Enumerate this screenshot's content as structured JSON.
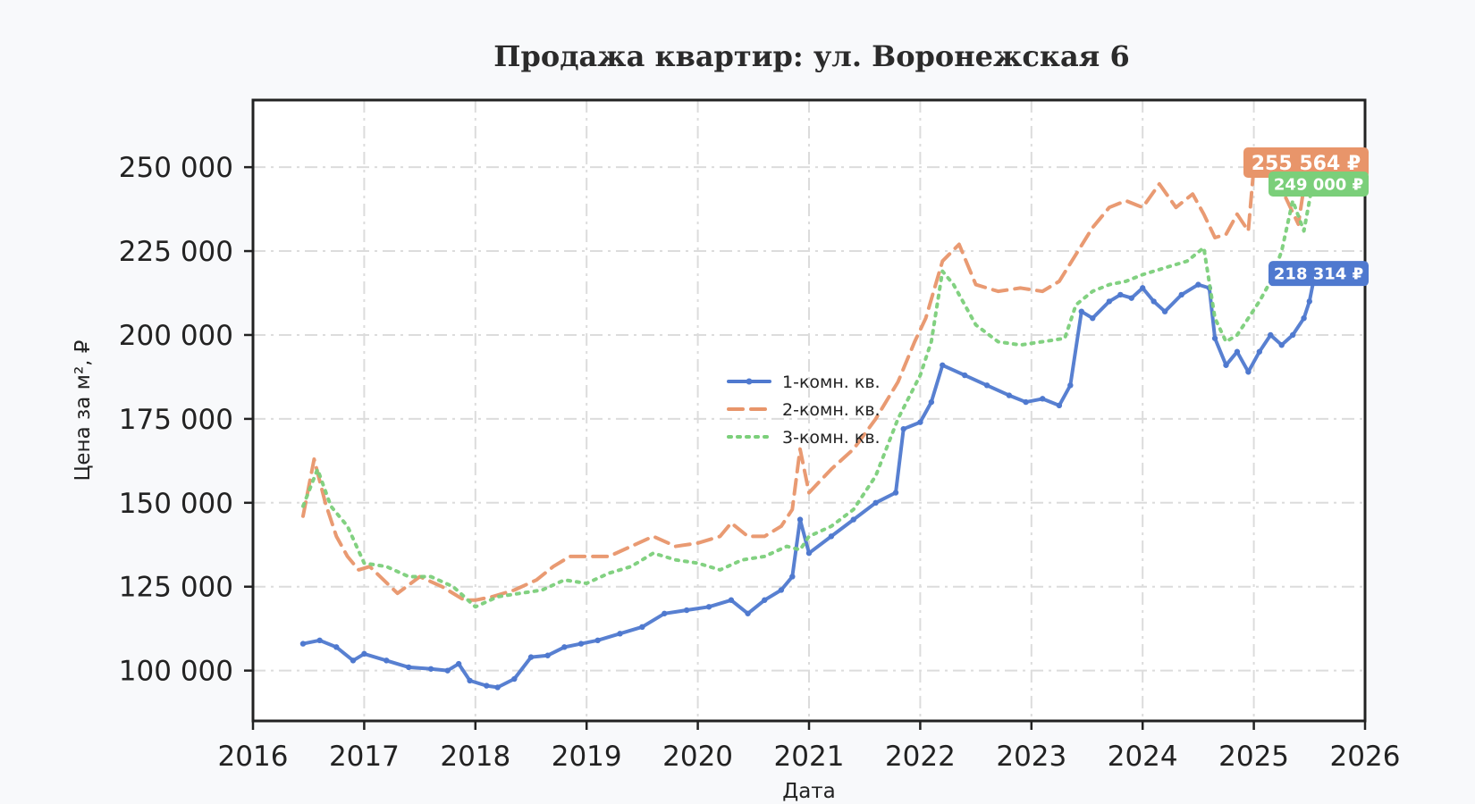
{
  "chart_data": {
    "type": "line",
    "title": "Продажа квартир: ул. Воронежская 6",
    "xlabel": "Дата",
    "ylabel": "Цена за м², ₽",
    "xlim": [
      2016,
      2026
    ],
    "ylim": [
      85000,
      270000
    ],
    "x_ticks": [
      "2016",
      "2017",
      "2018",
      "2019",
      "2020",
      "2021",
      "2022",
      "2023",
      "2024",
      "2025",
      "2026"
    ],
    "y_ticks": [
      100000,
      125000,
      150000,
      175000,
      200000,
      225000,
      250000
    ],
    "y_tick_labels": [
      "100 000",
      "125 000",
      "150 000",
      "175 000",
      "200 000",
      "225 000",
      "250 000"
    ],
    "grid": true,
    "legend_position": "center",
    "series": [
      {
        "name": "1-комн. кв.",
        "color": "#4f79cf",
        "style": "solid-markers",
        "last_label": "218 314 ₽",
        "x": [
          2016.45,
          2016.6,
          2016.75,
          2016.9,
          2017.0,
          2017.2,
          2017.4,
          2017.6,
          2017.75,
          2017.85,
          2017.95,
          2018.1,
          2018.2,
          2018.35,
          2018.5,
          2018.65,
          2018.8,
          2018.95,
          2019.1,
          2019.3,
          2019.5,
          2019.7,
          2019.9,
          2020.1,
          2020.3,
          2020.45,
          2020.6,
          2020.75,
          2020.85,
          2020.92,
          2021.0,
          2021.2,
          2021.4,
          2021.6,
          2021.78,
          2021.85,
          2022.0,
          2022.1,
          2022.2,
          2022.4,
          2022.6,
          2022.8,
          2022.95,
          2023.1,
          2023.25,
          2023.35,
          2023.45,
          2023.55,
          2023.7,
          2023.8,
          2023.9,
          2024.0,
          2024.1,
          2024.2,
          2024.35,
          2024.5,
          2024.6,
          2024.65,
          2024.75,
          2024.85,
          2024.95,
          2025.05,
          2025.15,
          2025.25,
          2025.35,
          2025.45,
          2025.5,
          2025.55
        ],
        "y": [
          108000,
          109000,
          107000,
          103000,
          105000,
          103000,
          101000,
          100500,
          100000,
          102000,
          97000,
          95500,
          95000,
          97500,
          104000,
          104500,
          107000,
          108000,
          109000,
          111000,
          113000,
          117000,
          118000,
          119000,
          121000,
          117000,
          121000,
          124000,
          128000,
          145000,
          135000,
          140000,
          145000,
          150000,
          153000,
          172000,
          174000,
          180000,
          191000,
          188000,
          185000,
          182000,
          180000,
          181000,
          179000,
          185000,
          207000,
          205000,
          210000,
          212000,
          211000,
          214000,
          210000,
          207000,
          212000,
          215000,
          214000,
          199000,
          191000,
          195000,
          189000,
          195000,
          200000,
          197000,
          200000,
          205000,
          210000,
          218314
        ]
      },
      {
        "name": "2-комн. кв.",
        "color": "#e8956a",
        "style": "dashed",
        "last_label": "255 564 ₽",
        "x": [
          2016.45,
          2016.55,
          2016.65,
          2016.75,
          2016.85,
          2016.95,
          2017.05,
          2017.3,
          2017.5,
          2017.7,
          2017.9,
          2018.0,
          2018.15,
          2018.35,
          2018.55,
          2018.7,
          2018.85,
          2019.0,
          2019.2,
          2019.4,
          2019.6,
          2019.8,
          2020.0,
          2020.2,
          2020.3,
          2020.45,
          2020.6,
          2020.75,
          2020.85,
          2020.92,
          2021.0,
          2021.2,
          2021.4,
          2021.6,
          2021.8,
          2021.95,
          2022.05,
          2022.2,
          2022.35,
          2022.5,
          2022.7,
          2022.9,
          2023.1,
          2023.25,
          2023.4,
          2023.55,
          2023.7,
          2023.85,
          2024.0,
          2024.15,
          2024.3,
          2024.45,
          2024.55,
          2024.65,
          2024.75,
          2024.85,
          2024.95,
          2025.0,
          2025.1,
          2025.2,
          2025.3,
          2025.4,
          2025.5,
          2025.55
        ],
        "y": [
          146000,
          163000,
          150000,
          140000,
          134000,
          130000,
          131000,
          123000,
          128000,
          125000,
          121000,
          121000,
          122000,
          124000,
          127000,
          131000,
          134000,
          134000,
          134000,
          137000,
          140000,
          137000,
          138000,
          140000,
          144000,
          140000,
          140000,
          143000,
          148000,
          166000,
          153000,
          160000,
          166000,
          175000,
          186000,
          198000,
          205000,
          222000,
          227000,
          215000,
          213000,
          214000,
          213000,
          216000,
          224000,
          232000,
          238000,
          240000,
          238000,
          245000,
          238000,
          242000,
          236000,
          229000,
          230000,
          236000,
          231000,
          250000,
          255000,
          247000,
          240000,
          233000,
          255000,
          255564
        ]
      },
      {
        "name": "3-комн. кв.",
        "color": "#7bcf7a",
        "style": "dotted",
        "last_label": "249 000 ₽",
        "x": [
          2016.45,
          2016.58,
          2016.7,
          2016.85,
          2017.0,
          2017.2,
          2017.4,
          2017.6,
          2017.8,
          2018.0,
          2018.2,
          2018.4,
          2018.6,
          2018.8,
          2019.0,
          2019.2,
          2019.4,
          2019.6,
          2019.8,
          2020.0,
          2020.2,
          2020.4,
          2020.6,
          2020.8,
          2020.92,
          2021.0,
          2021.2,
          2021.4,
          2021.6,
          2021.8,
          2022.0,
          2022.1,
          2022.2,
          2022.3,
          2022.5,
          2022.7,
          2022.9,
          2023.1,
          2023.3,
          2023.4,
          2023.55,
          2023.7,
          2023.85,
          2024.0,
          2024.2,
          2024.4,
          2024.55,
          2024.65,
          2024.75,
          2024.85,
          2024.95,
          2025.05,
          2025.15,
          2025.25,
          2025.35,
          2025.45,
          2025.55
        ],
        "y": [
          149000,
          160000,
          149000,
          143000,
          132000,
          131000,
          128000,
          128000,
          125000,
          119000,
          122000,
          123000,
          124000,
          127000,
          126000,
          129000,
          131000,
          135000,
          133000,
          132000,
          130000,
          133000,
          134000,
          137000,
          136000,
          140000,
          143000,
          148000,
          158000,
          175000,
          188000,
          198000,
          219000,
          215000,
          203000,
          198000,
          197000,
          198000,
          199000,
          209000,
          213000,
          215000,
          216000,
          218000,
          220000,
          222000,
          226000,
          205000,
          198000,
          200000,
          205000,
          210000,
          216000,
          225000,
          240000,
          231000,
          249000
        ]
      }
    ]
  }
}
